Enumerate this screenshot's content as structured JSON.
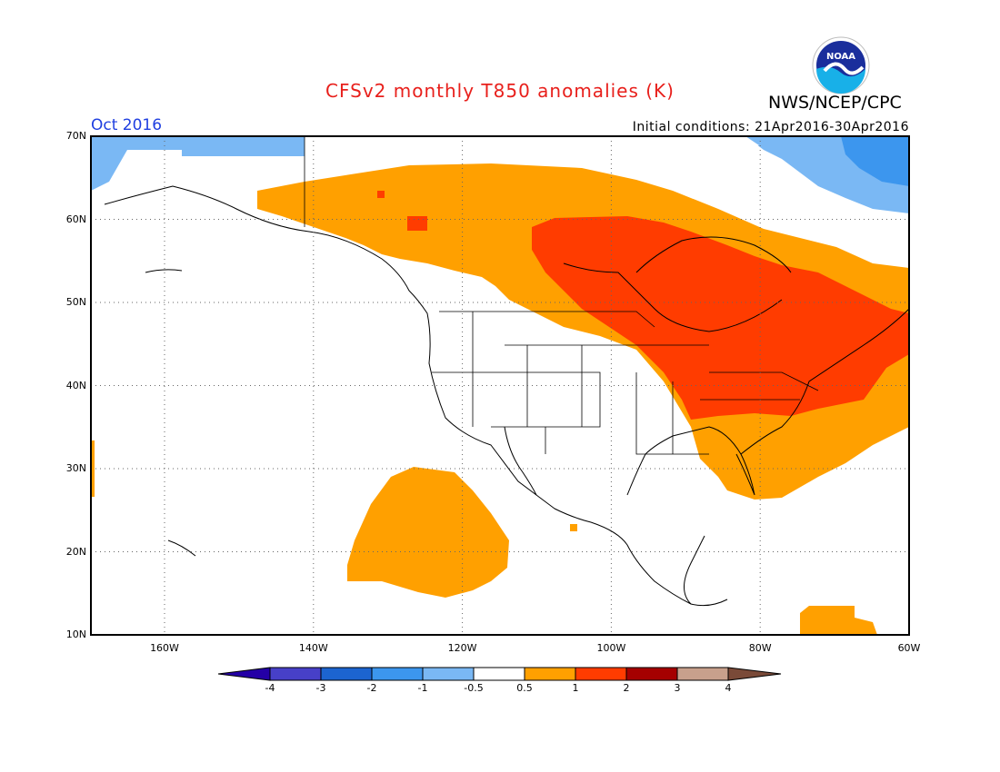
{
  "header": {
    "title": "CFSv2 monthly T850 anomalies (K)",
    "org": "NWS/NCEP/CPC",
    "logo_text": "NOAA",
    "period": "Oct 2016",
    "initial_conditions": "Initial conditions: 21Apr2016-30Apr2016"
  },
  "axes": {
    "lat_labels": [
      "70N",
      "60N",
      "50N",
      "40N",
      "30N",
      "20N",
      "10N"
    ],
    "lon_labels": [
      "160W",
      "140W",
      "120W",
      "100W",
      "80W",
      "60W"
    ]
  },
  "colorbar": {
    "ticks": [
      "-4",
      "-3",
      "-2",
      "-1",
      "-0.5",
      "0.5",
      "1",
      "2",
      "3",
      "4"
    ],
    "colors": [
      "#2400a6",
      "#4740c8",
      "#1c64d0",
      "#3c96ee",
      "#7ab8f4",
      "#ffffff",
      "#ffa000",
      "#ff3c00",
      "#a50000",
      "#c8a08c",
      "#7a4a38"
    ]
  },
  "anomaly_regions": [
    {
      "range": "+0.5 to +1",
      "color": "#ffa000",
      "area": "Alaska, western & central Canada, eastern US"
    },
    {
      "range": "+1 to +2",
      "color": "#ff3c00",
      "area": "central & eastern Canada, Great Lakes, US Northeast"
    },
    {
      "range": "-1 to -0.5",
      "color": "#7ab8f4",
      "area": "Arctic Alaska coast, northern Quebec/Baffin"
    },
    {
      "range": "+0.5 to +1",
      "color": "#ffa000",
      "area": "eastern subtropical Pacific"
    },
    {
      "range": "+0.5 to +1",
      "color": "#ffa000",
      "area": "Caribbean / northern South America"
    }
  ]
}
